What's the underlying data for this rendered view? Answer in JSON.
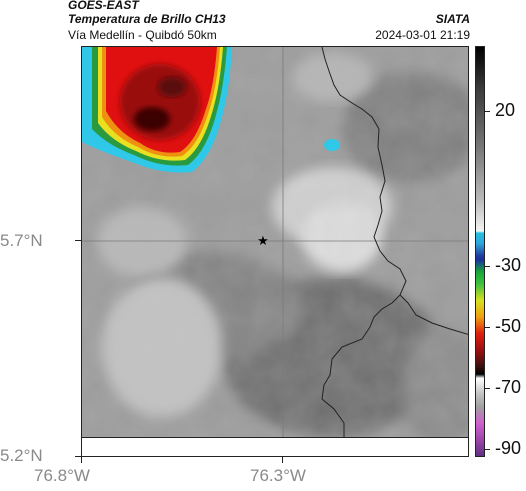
{
  "header": {
    "satellite": "GOES-EAST",
    "product": "Temperatura de Brillo CH13",
    "route": "Vía Medellín - Quibdó 50km",
    "source": "SIATA",
    "datetime": "2024-03-01 21:19"
  },
  "axes": {
    "y_ticks": [
      "5.7°N",
      "5.2°N"
    ],
    "x_ticks": [
      "76.8°W",
      "76.3°W"
    ]
  },
  "colorbar": {
    "ticks": [
      "20",
      "-30",
      "-50",
      "-70",
      "-90"
    ]
  },
  "map": {
    "marker": "star-marker"
  }
}
